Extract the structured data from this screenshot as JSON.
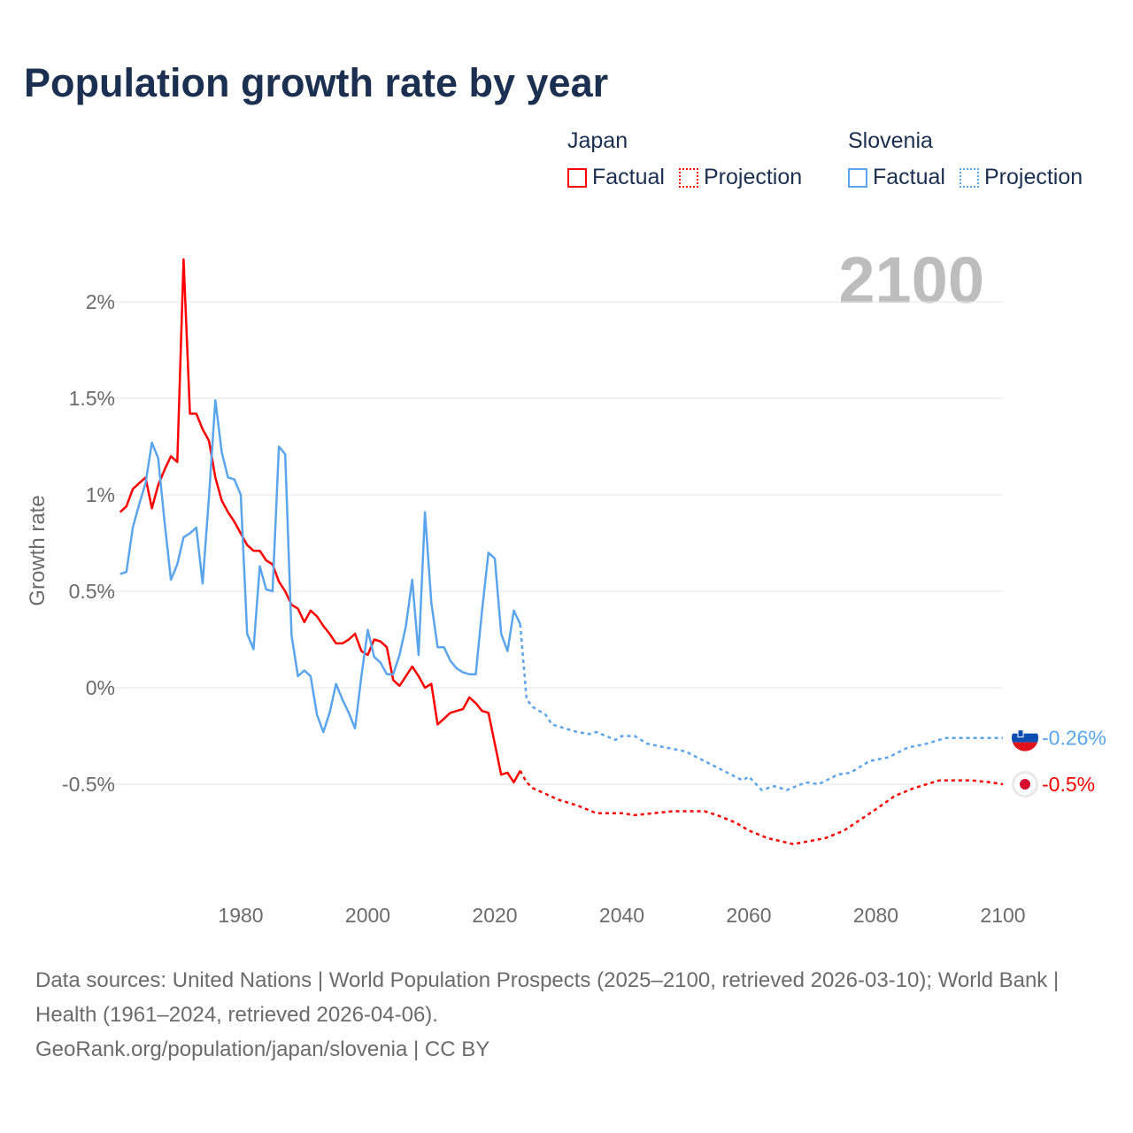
{
  "title": "Population growth rate by year",
  "legend": {
    "groups": [
      {
        "name": "Japan",
        "color": "#ff0000",
        "factual": "Factual",
        "projection": "Projection"
      },
      {
        "name": "Slovenia",
        "color": "#5aa5ec",
        "factual": "Factual",
        "projection": "Projection"
      }
    ]
  },
  "year_display": "2100",
  "footer": {
    "sources": "Data sources: United Nations | World Population Prospects (2025–2100, retrieved 2026-03-10); World Bank | Health (1961–2024, retrieved 2026-04-06).",
    "credit": "GeoRank.org/population/japan/slovenia | CC BY"
  },
  "chart_data": {
    "type": "line",
    "title": "Population growth rate by year",
    "xlabel": "",
    "ylabel": "Growth rate",
    "xlim": [
      1961,
      2100
    ],
    "ylim": [
      -1.0,
      2.3
    ],
    "x_ticks": [
      1980,
      2000,
      2020,
      2040,
      2060,
      2080,
      2100
    ],
    "x_tick_labels": [
      "1980",
      "2000",
      "2020",
      "2040",
      "2060",
      "2080",
      "2100"
    ],
    "y_ticks": [
      -0.5,
      0,
      0.5,
      1,
      1.5,
      2
    ],
    "y_tick_labels": [
      "-0.5%",
      "0%",
      "0.5%",
      "1%",
      "1.5%",
      "2%"
    ],
    "grid": true,
    "legend_position": "top-right",
    "series": [
      {
        "name": "Japan",
        "color": "#ff0000",
        "end_label": "-0.5%",
        "factual_start_year": 1961,
        "factual": [
          0.91,
          0.94,
          1.03,
          1.06,
          1.09,
          0.93,
          1.05,
          1.13,
          1.2,
          1.17,
          2.22,
          1.42,
          1.42,
          1.34,
          1.28,
          1.09,
          0.97,
          0.91,
          0.86,
          0.8,
          0.74,
          0.71,
          0.71,
          0.66,
          0.64,
          0.55,
          0.5,
          0.43,
          0.41,
          0.34,
          0.4,
          0.37,
          0.32,
          0.28,
          0.23,
          0.23,
          0.25,
          0.28,
          0.19,
          0.17,
          0.25,
          0.24,
          0.21,
          0.04,
          0.01,
          0.06,
          0.11,
          0.06,
          0.0,
          0.02,
          -0.19,
          -0.16,
          -0.13,
          -0.12,
          -0.11,
          -0.05,
          -0.08,
          -0.12,
          -0.13,
          -0.29,
          -0.45,
          -0.44,
          -0.49,
          -0.43
        ],
        "projection": [
          [
            2024,
            -0.43
          ],
          [
            2025,
            -0.49
          ],
          [
            2026,
            -0.52
          ],
          [
            2028,
            -0.55
          ],
          [
            2030,
            -0.58
          ],
          [
            2033,
            -0.61
          ],
          [
            2036,
            -0.65
          ],
          [
            2040,
            -0.65
          ],
          [
            2042,
            -0.66
          ],
          [
            2045,
            -0.65
          ],
          [
            2048,
            -0.64
          ],
          [
            2053,
            -0.64
          ],
          [
            2055,
            -0.66
          ],
          [
            2058,
            -0.7
          ],
          [
            2060,
            -0.74
          ],
          [
            2063,
            -0.78
          ],
          [
            2067,
            -0.81
          ],
          [
            2072,
            -0.78
          ],
          [
            2075,
            -0.74
          ],
          [
            2080,
            -0.63
          ],
          [
            2083,
            -0.56
          ],
          [
            2086,
            -0.52
          ],
          [
            2090,
            -0.48
          ],
          [
            2095,
            -0.48
          ],
          [
            2098,
            -0.49
          ],
          [
            2100,
            -0.5
          ]
        ]
      },
      {
        "name": "Slovenia",
        "color": "#5aa5ec",
        "end_label": "-0.26%",
        "factual_start_year": 1961,
        "factual": [
          0.59,
          0.6,
          0.83,
          0.95,
          1.06,
          1.27,
          1.19,
          0.86,
          0.56,
          0.64,
          0.78,
          0.8,
          0.83,
          0.54,
          0.99,
          1.49,
          1.22,
          1.09,
          1.08,
          1.0,
          0.28,
          0.2,
          0.63,
          0.51,
          0.5,
          1.25,
          1.21,
          0.27,
          0.06,
          0.09,
          0.06,
          -0.14,
          -0.23,
          -0.13,
          0.02,
          -0.06,
          -0.13,
          -0.21,
          0.06,
          0.3,
          0.16,
          0.13,
          0.07,
          0.07,
          0.17,
          0.32,
          0.56,
          0.17,
          0.91,
          0.44,
          0.21,
          0.21,
          0.14,
          0.1,
          0.08,
          0.07,
          0.07,
          0.4,
          0.7,
          0.67,
          0.28,
          0.19,
          0.4,
          0.33
        ],
        "projection": [
          [
            2024,
            0.33
          ],
          [
            2025,
            -0.06
          ],
          [
            2026,
            -0.1
          ],
          [
            2028,
            -0.14
          ],
          [
            2029,
            -0.19
          ],
          [
            2031,
            -0.21
          ],
          [
            2033,
            -0.23
          ],
          [
            2035,
            -0.24
          ],
          [
            2036,
            -0.23
          ],
          [
            2039,
            -0.27
          ],
          [
            2040,
            -0.25
          ],
          [
            2042,
            -0.25
          ],
          [
            2044,
            -0.29
          ],
          [
            2047,
            -0.31
          ],
          [
            2050,
            -0.33
          ],
          [
            2053,
            -0.38
          ],
          [
            2056,
            -0.43
          ],
          [
            2059,
            -0.48
          ],
          [
            2060,
            -0.46
          ],
          [
            2062,
            -0.53
          ],
          [
            2064,
            -0.51
          ],
          [
            2066,
            -0.53
          ],
          [
            2069,
            -0.49
          ],
          [
            2071,
            -0.5
          ],
          [
            2074,
            -0.45
          ],
          [
            2076,
            -0.44
          ],
          [
            2079,
            -0.38
          ],
          [
            2082,
            -0.36
          ],
          [
            2085,
            -0.31
          ],
          [
            2088,
            -0.29
          ],
          [
            2091,
            -0.26
          ],
          [
            2093,
            -0.26
          ],
          [
            2100,
            -0.26
          ]
        ]
      }
    ]
  }
}
